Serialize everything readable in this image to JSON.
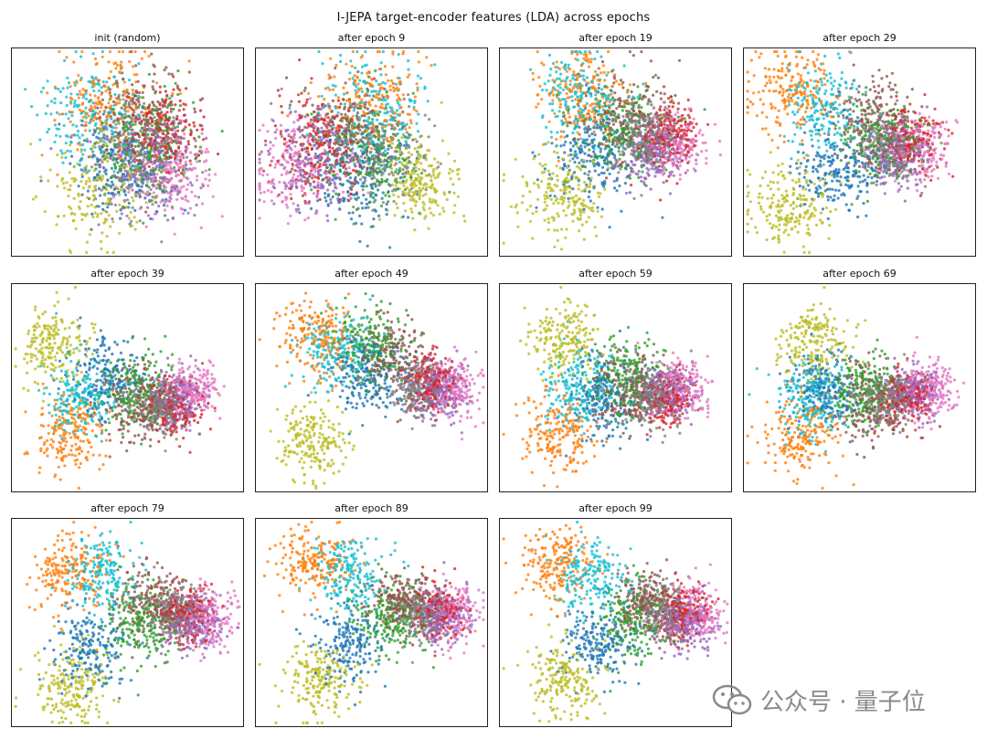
{
  "figure": {
    "title": "I-JEPA target-encoder features (LDA) across epochs"
  },
  "watermark": {
    "text": "公众号 · 量子位",
    "icon": "wechat-icon"
  },
  "colors": [
    "#1f77b4",
    "#ff7f0e",
    "#2ca02c",
    "#d62728",
    "#9467bd",
    "#8c564b",
    "#e377c2",
    "#7f7f7f",
    "#bcbd22",
    "#17becf"
  ],
  "chart_data": [
    {
      "type": "scatter",
      "title": "init (random)",
      "point_count": 2000,
      "classes": 10,
      "structure": "diffuse, overlapping",
      "centers": [
        [
          0.48,
          0.42
        ],
        [
          0.42,
          0.75
        ],
        [
          0.6,
          0.55
        ],
        [
          0.65,
          0.6
        ],
        [
          0.58,
          0.45
        ],
        [
          0.55,
          0.65
        ],
        [
          0.7,
          0.4
        ],
        [
          0.55,
          0.48
        ],
        [
          0.38,
          0.32
        ],
        [
          0.35,
          0.68
        ]
      ]
    },
    {
      "type": "scatter",
      "title": "after epoch 9",
      "point_count": 2000,
      "classes": 10,
      "structure": "diffuse, overlapping",
      "centers": [
        [
          0.45,
          0.4
        ],
        [
          0.5,
          0.75
        ],
        [
          0.5,
          0.48
        ],
        [
          0.3,
          0.55
        ],
        [
          0.25,
          0.45
        ],
        [
          0.35,
          0.6
        ],
        [
          0.18,
          0.42
        ],
        [
          0.55,
          0.5
        ],
        [
          0.7,
          0.35
        ],
        [
          0.5,
          0.7
        ]
      ]
    },
    {
      "type": "scatter",
      "title": "after epoch 19",
      "point_count": 2000,
      "classes": 10,
      "structure": "emerging clusters",
      "centers": [
        [
          0.4,
          0.45
        ],
        [
          0.35,
          0.78
        ],
        [
          0.55,
          0.6
        ],
        [
          0.72,
          0.58
        ],
        [
          0.65,
          0.5
        ],
        [
          0.55,
          0.68
        ],
        [
          0.75,
          0.55
        ],
        [
          0.62,
          0.55
        ],
        [
          0.28,
          0.3
        ],
        [
          0.35,
          0.75
        ]
      ]
    },
    {
      "type": "scatter",
      "title": "after epoch 29",
      "point_count": 2000,
      "classes": 10,
      "structure": "emerging clusters",
      "centers": [
        [
          0.4,
          0.4
        ],
        [
          0.2,
          0.8
        ],
        [
          0.6,
          0.55
        ],
        [
          0.72,
          0.55
        ],
        [
          0.65,
          0.5
        ],
        [
          0.55,
          0.65
        ],
        [
          0.75,
          0.52
        ],
        [
          0.62,
          0.52
        ],
        [
          0.2,
          0.25
        ],
        [
          0.35,
          0.72
        ]
      ]
    },
    {
      "type": "scatter",
      "title": "after epoch 39",
      "point_count": 2000,
      "classes": 10,
      "structure": "wedge-shaped manifold",
      "centers": [
        [
          0.4,
          0.55
        ],
        [
          0.25,
          0.28
        ],
        [
          0.55,
          0.5
        ],
        [
          0.7,
          0.42
        ],
        [
          0.7,
          0.45
        ],
        [
          0.55,
          0.42
        ],
        [
          0.78,
          0.48
        ],
        [
          0.65,
          0.4
        ],
        [
          0.18,
          0.7
        ],
        [
          0.3,
          0.45
        ]
      ]
    },
    {
      "type": "scatter",
      "title": "after epoch 49",
      "point_count": 2000,
      "classes": 10,
      "structure": "wedge-shaped manifold",
      "centers": [
        [
          0.48,
          0.55
        ],
        [
          0.28,
          0.75
        ],
        [
          0.5,
          0.7
        ],
        [
          0.75,
          0.52
        ],
        [
          0.78,
          0.48
        ],
        [
          0.6,
          0.65
        ],
        [
          0.85,
          0.5
        ],
        [
          0.7,
          0.48
        ],
        [
          0.25,
          0.25
        ],
        [
          0.35,
          0.68
        ]
      ]
    },
    {
      "type": "scatter",
      "title": "after epoch 59",
      "point_count": 2000,
      "classes": 10,
      "structure": "wedge-shaped manifold",
      "centers": [
        [
          0.45,
          0.45
        ],
        [
          0.25,
          0.28
        ],
        [
          0.55,
          0.55
        ],
        [
          0.72,
          0.45
        ],
        [
          0.72,
          0.48
        ],
        [
          0.55,
          0.5
        ],
        [
          0.78,
          0.5
        ],
        [
          0.65,
          0.45
        ],
        [
          0.28,
          0.72
        ],
        [
          0.33,
          0.5
        ]
      ]
    },
    {
      "type": "scatter",
      "title": "after epoch 69",
      "point_count": 2000,
      "classes": 10,
      "structure": "wedge-shaped manifold",
      "centers": [
        [
          0.35,
          0.5
        ],
        [
          0.25,
          0.28
        ],
        [
          0.5,
          0.5
        ],
        [
          0.7,
          0.45
        ],
        [
          0.72,
          0.48
        ],
        [
          0.55,
          0.42
        ],
        [
          0.8,
          0.5
        ],
        [
          0.62,
          0.45
        ],
        [
          0.3,
          0.72
        ],
        [
          0.3,
          0.45
        ]
      ]
    },
    {
      "type": "scatter",
      "title": "after epoch 79",
      "point_count": 2000,
      "classes": 10,
      "structure": "two-lobed wedge",
      "centers": [
        [
          0.35,
          0.38
        ],
        [
          0.25,
          0.75
        ],
        [
          0.55,
          0.5
        ],
        [
          0.75,
          0.55
        ],
        [
          0.78,
          0.5
        ],
        [
          0.6,
          0.6
        ],
        [
          0.85,
          0.52
        ],
        [
          0.7,
          0.55
        ],
        [
          0.25,
          0.2
        ],
        [
          0.4,
          0.75
        ]
      ]
    },
    {
      "type": "scatter",
      "title": "after epoch 89",
      "point_count": 2000,
      "classes": 10,
      "structure": "two-lobed wedge",
      "centers": [
        [
          0.4,
          0.4
        ],
        [
          0.25,
          0.78
        ],
        [
          0.58,
          0.52
        ],
        [
          0.78,
          0.55
        ],
        [
          0.8,
          0.52
        ],
        [
          0.62,
          0.6
        ],
        [
          0.85,
          0.55
        ],
        [
          0.72,
          0.55
        ],
        [
          0.28,
          0.22
        ],
        [
          0.4,
          0.72
        ]
      ]
    },
    {
      "type": "scatter",
      "title": "after epoch 99",
      "point_count": 2000,
      "classes": 10,
      "structure": "two-lobed wedge",
      "centers": [
        [
          0.42,
          0.4
        ],
        [
          0.25,
          0.78
        ],
        [
          0.58,
          0.5
        ],
        [
          0.78,
          0.55
        ],
        [
          0.8,
          0.5
        ],
        [
          0.62,
          0.6
        ],
        [
          0.85,
          0.55
        ],
        [
          0.72,
          0.55
        ],
        [
          0.28,
          0.22
        ],
        [
          0.4,
          0.72
        ]
      ]
    }
  ]
}
